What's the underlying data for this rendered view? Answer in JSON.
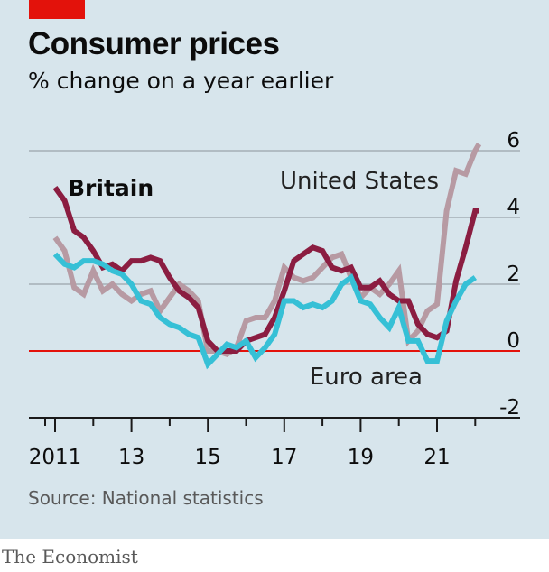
{
  "header": {
    "title": "Consumer prices",
    "subtitle": "% change on a year earlier"
  },
  "footer": {
    "source": "Source: National statistics",
    "brand": "The Economist"
  },
  "colors": {
    "background": "#d7e5ec",
    "accent_tab": "#e3120b",
    "britain": "#8b1d41",
    "united_states": "#b79aa3",
    "euro_area": "#36c0d6",
    "zero_line": "#e3120b",
    "gridline": "#9aa4aa"
  },
  "chart_data": {
    "type": "line",
    "title": "Consumer prices",
    "subtitle": "% change on a year earlier",
    "xlabel": "",
    "ylabel": "",
    "xlim": [
      2010.6,
      2022.7
    ],
    "ylim": [
      -2,
      6
    ],
    "y_ticks": [
      6,
      4,
      2,
      0,
      -2
    ],
    "y_tick_labels": [
      "6",
      "4",
      "2",
      "0",
      "-2"
    ],
    "x_ticks": [
      2011,
      2013,
      2015,
      2017,
      2019,
      2021
    ],
    "x_tick_labels": [
      "2011",
      "13",
      "15",
      "17",
      "19",
      "21"
    ],
    "grid": true,
    "zero_line": true,
    "legend": "direct labels",
    "series": [
      {
        "name": "United States",
        "label": "United States",
        "color": "#b79aa3",
        "points": [
          [
            2011.0,
            3.4
          ],
          [
            2011.25,
            3.0
          ],
          [
            2011.5,
            1.9
          ],
          [
            2011.75,
            1.7
          ],
          [
            2012.0,
            2.4
          ],
          [
            2012.25,
            1.8
          ],
          [
            2012.5,
            2.0
          ],
          [
            2012.75,
            1.7
          ],
          [
            2013.0,
            1.5
          ],
          [
            2013.25,
            1.7
          ],
          [
            2013.5,
            1.8
          ],
          [
            2013.75,
            1.2
          ],
          [
            2014.0,
            1.6
          ],
          [
            2014.25,
            2.0
          ],
          [
            2014.5,
            1.8
          ],
          [
            2014.75,
            1.5
          ],
          [
            2015.0,
            0.0
          ],
          [
            2015.25,
            0.0
          ],
          [
            2015.5,
            -0.1
          ],
          [
            2015.75,
            0.1
          ],
          [
            2016.0,
            0.9
          ],
          [
            2016.25,
            1.0
          ],
          [
            2016.5,
            1.0
          ],
          [
            2016.75,
            1.5
          ],
          [
            2017.0,
            2.5
          ],
          [
            2017.25,
            2.2
          ],
          [
            2017.5,
            2.1
          ],
          [
            2017.75,
            2.2
          ],
          [
            2018.0,
            2.5
          ],
          [
            2018.25,
            2.8
          ],
          [
            2018.5,
            2.9
          ],
          [
            2018.75,
            2.2
          ],
          [
            2019.0,
            1.6
          ],
          [
            2019.25,
            1.9
          ],
          [
            2019.5,
            1.7
          ],
          [
            2019.75,
            2.0
          ],
          [
            2020.0,
            2.4
          ],
          [
            2020.25,
            0.3
          ],
          [
            2020.5,
            0.6
          ],
          [
            2020.75,
            1.2
          ],
          [
            2021.0,
            1.4
          ],
          [
            2021.25,
            4.2
          ],
          [
            2021.5,
            5.4
          ],
          [
            2021.75,
            5.3
          ],
          [
            2022.0,
            6.0
          ],
          [
            2022.1,
            6.2
          ]
        ]
      },
      {
        "name": "Britain",
        "label": "Britain",
        "color": "#8b1d41",
        "points": [
          [
            2011.0,
            4.9
          ],
          [
            2011.25,
            4.5
          ],
          [
            2011.5,
            3.6
          ],
          [
            2011.75,
            3.4
          ],
          [
            2012.0,
            3.0
          ],
          [
            2012.25,
            2.5
          ],
          [
            2012.5,
            2.6
          ],
          [
            2012.75,
            2.4
          ],
          [
            2013.0,
            2.7
          ],
          [
            2013.25,
            2.7
          ],
          [
            2013.5,
            2.8
          ],
          [
            2013.75,
            2.7
          ],
          [
            2014.0,
            2.2
          ],
          [
            2014.25,
            1.8
          ],
          [
            2014.5,
            1.6
          ],
          [
            2014.75,
            1.3
          ],
          [
            2015.0,
            0.3
          ],
          [
            2015.25,
            0.0
          ],
          [
            2015.5,
            0.0
          ],
          [
            2015.75,
            0.0
          ],
          [
            2016.0,
            0.3
          ],
          [
            2016.25,
            0.4
          ],
          [
            2016.5,
            0.5
          ],
          [
            2016.75,
            1.0
          ],
          [
            2017.0,
            1.8
          ],
          [
            2017.25,
            2.7
          ],
          [
            2017.5,
            2.9
          ],
          [
            2017.75,
            3.1
          ],
          [
            2018.0,
            3.0
          ],
          [
            2018.25,
            2.5
          ],
          [
            2018.5,
            2.4
          ],
          [
            2018.75,
            2.5
          ],
          [
            2019.0,
            1.9
          ],
          [
            2019.25,
            1.9
          ],
          [
            2019.5,
            2.1
          ],
          [
            2019.75,
            1.7
          ],
          [
            2020.0,
            1.5
          ],
          [
            2020.25,
            1.5
          ],
          [
            2020.5,
            0.8
          ],
          [
            2020.75,
            0.5
          ],
          [
            2021.0,
            0.4
          ],
          [
            2021.25,
            0.6
          ],
          [
            2021.5,
            2.1
          ],
          [
            2021.75,
            3.1
          ],
          [
            2022.0,
            4.2
          ],
          [
            2022.1,
            4.2
          ]
        ]
      },
      {
        "name": "Euro area",
        "label": "Euro area",
        "color": "#36c0d6",
        "points": [
          [
            2011.0,
            2.9
          ],
          [
            2011.25,
            2.6
          ],
          [
            2011.5,
            2.5
          ],
          [
            2011.75,
            2.7
          ],
          [
            2012.0,
            2.7
          ],
          [
            2012.25,
            2.6
          ],
          [
            2012.5,
            2.4
          ],
          [
            2012.75,
            2.3
          ],
          [
            2013.0,
            2.0
          ],
          [
            2013.25,
            1.5
          ],
          [
            2013.5,
            1.4
          ],
          [
            2013.75,
            1.0
          ],
          [
            2014.0,
            0.8
          ],
          [
            2014.25,
            0.7
          ],
          [
            2014.5,
            0.5
          ],
          [
            2014.75,
            0.4
          ],
          [
            2015.0,
            -0.4
          ],
          [
            2015.25,
            -0.1
          ],
          [
            2015.5,
            0.2
          ],
          [
            2015.75,
            0.1
          ],
          [
            2016.0,
            0.3
          ],
          [
            2016.25,
            -0.2
          ],
          [
            2016.5,
            0.1
          ],
          [
            2016.75,
            0.5
          ],
          [
            2017.0,
            1.5
          ],
          [
            2017.25,
            1.5
          ],
          [
            2017.5,
            1.3
          ],
          [
            2017.75,
            1.4
          ],
          [
            2018.0,
            1.3
          ],
          [
            2018.25,
            1.5
          ],
          [
            2018.5,
            2.0
          ],
          [
            2018.75,
            2.2
          ],
          [
            2019.0,
            1.5
          ],
          [
            2019.25,
            1.4
          ],
          [
            2019.5,
            1.0
          ],
          [
            2019.75,
            0.7
          ],
          [
            2020.0,
            1.3
          ],
          [
            2020.25,
            0.3
          ],
          [
            2020.5,
            0.3
          ],
          [
            2020.75,
            -0.3
          ],
          [
            2021.0,
            -0.3
          ],
          [
            2021.25,
            0.9
          ],
          [
            2021.5,
            1.5
          ],
          [
            2021.75,
            2.0
          ],
          [
            2022.0,
            2.2
          ]
        ]
      }
    ]
  }
}
